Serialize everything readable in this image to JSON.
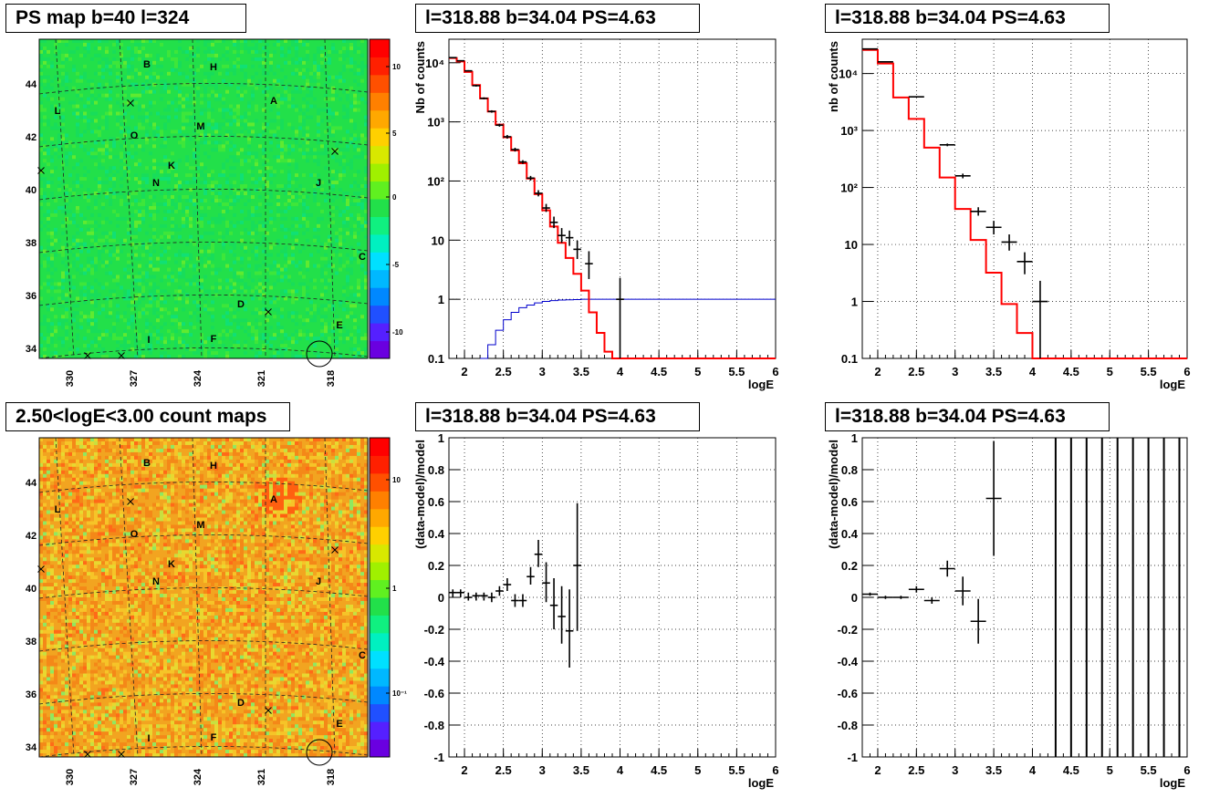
{
  "colors": {
    "ps_map_base": "#22e04a",
    "count_map_base": "#f2a420",
    "model_line": "#ff0000",
    "exposure_line": "#0000cc",
    "data": "#000000",
    "grid": "#000000"
  },
  "panels": {
    "ps_map_title": "PS map b=40 l=324",
    "count_map_title": "2.50<logE<3.00 count maps",
    "spec_left_title": "l=318.88 b=34.04 PS=4.63",
    "spec_right_title": "l=318.88 b=34.04 PS=4.63",
    "resid_left_title": "l=318.88 b=34.04 PS=4.63",
    "resid_right_title": "l=318.88 b=34.04 PS=4.63"
  },
  "maps": {
    "lat_ticks": [
      "44",
      "42",
      "40",
      "38",
      "36",
      "34"
    ],
    "lon_ticks": [
      "330",
      "327",
      "324",
      "321",
      "318"
    ],
    "ps_palette_ticks": [
      "10",
      "5",
      "0",
      "-5",
      "-10"
    ],
    "count_palette_ticks": [
      "10",
      "1",
      "10⁻¹"
    ],
    "source_labels": [
      "B",
      "H",
      "A",
      "L",
      "M",
      "O",
      "K",
      "N",
      "J",
      "C",
      "D",
      "E",
      "I",
      "F"
    ],
    "crosses": 6
  },
  "chart_data": [
    {
      "type": "histogram",
      "name": "spectrum-left",
      "xlabel": "logE",
      "ylabel": "Nb of counts",
      "xlim": [
        1.8,
        6
      ],
      "ylim": [
        0.1,
        25000
      ],
      "yscale": "log",
      "x_ticks": [
        "2",
        "2.5",
        "3",
        "3.5",
        "4",
        "4.5",
        "5",
        "5.5",
        "6"
      ],
      "y_ticks": [
        "0.1",
        "1",
        "10",
        "10²",
        "10³",
        "10⁴"
      ],
      "grid": true,
      "model_step": {
        "bin_width": 0.1,
        "x_start": 1.8,
        "values": [
          12000,
          10500,
          7000,
          4200,
          2500,
          1500,
          900,
          550,
          330,
          200,
          110,
          60,
          32,
          17,
          9,
          5,
          2.7,
          1.4,
          0.6,
          0.27,
          0.13,
          0.1,
          0.1,
          0.1,
          0.1,
          0.1,
          0.1,
          0.1,
          0.1,
          0.1,
          0.1,
          0.1,
          0.1,
          0.1,
          0.1,
          0.1,
          0.1,
          0.1,
          0.1,
          0.1,
          0.1,
          0.1
        ]
      },
      "exposure_step": {
        "bin_width": 0.1,
        "x_start": 2.2,
        "values": [
          0.1,
          0.17,
          0.3,
          0.45,
          0.6,
          0.72,
          0.8,
          0.87,
          0.92,
          0.95,
          0.97,
          0.98,
          0.99,
          1,
          1,
          1,
          1,
          1,
          1,
          1,
          1,
          1,
          1,
          1,
          1,
          1,
          1,
          1,
          1,
          1,
          1,
          1,
          1,
          1,
          1,
          1,
          1,
          1
        ]
      },
      "data_points": [
        {
          "x": 1.85,
          "y": 12200,
          "ylo": 12000,
          "yhi": 12400
        },
        {
          "x": 1.95,
          "y": 10800,
          "ylo": 10600,
          "yhi": 11000
        },
        {
          "x": 2.05,
          "y": 7300,
          "ylo": 7100,
          "yhi": 7500
        },
        {
          "x": 2.15,
          "y": 4100,
          "ylo": 3950,
          "yhi": 4250
        },
        {
          "x": 2.25,
          "y": 2500,
          "ylo": 2400,
          "yhi": 2600
        },
        {
          "x": 2.35,
          "y": 1500,
          "ylo": 1430,
          "yhi": 1570
        },
        {
          "x": 2.45,
          "y": 880,
          "ylo": 830,
          "yhi": 930
        },
        {
          "x": 2.55,
          "y": 560,
          "ylo": 520,
          "yhi": 600
        },
        {
          "x": 2.65,
          "y": 340,
          "ylo": 315,
          "yhi": 365
        },
        {
          "x": 2.75,
          "y": 210,
          "ylo": 195,
          "yhi": 225
        },
        {
          "x": 2.85,
          "y": 112,
          "ylo": 102,
          "yhi": 122
        },
        {
          "x": 2.95,
          "y": 62,
          "ylo": 55,
          "yhi": 70
        },
        {
          "x": 3.05,
          "y": 35,
          "ylo": 30,
          "yhi": 41
        },
        {
          "x": 3.15,
          "y": 20,
          "ylo": 16,
          "yhi": 25
        },
        {
          "x": 3.25,
          "y": 12,
          "ylo": 9,
          "yhi": 16
        },
        {
          "x": 3.35,
          "y": 11,
          "ylo": 8,
          "yhi": 14.5
        },
        {
          "x": 3.45,
          "y": 7,
          "ylo": 4.8,
          "yhi": 9.8
        },
        {
          "x": 3.6,
          "y": 4,
          "ylo": 2.2,
          "yhi": 6.5
        },
        {
          "x": 4.0,
          "y": 1,
          "ylo": 0.1,
          "yhi": 2.3
        }
      ]
    },
    {
      "type": "histogram",
      "name": "spectrum-right",
      "xlabel": "logE",
      "ylabel": "nb of counts",
      "xlim": [
        1.8,
        6
      ],
      "ylim": [
        0.1,
        40000
      ],
      "yscale": "log",
      "x_ticks": [
        "2",
        "2.5",
        "3",
        "3.5",
        "4",
        "4.5",
        "5",
        "5.5",
        "6"
      ],
      "y_ticks": [
        "0.1",
        "1",
        "10",
        "10²",
        "10³",
        "10⁴"
      ],
      "grid": true,
      "model_step": {
        "bin_width": 0.2,
        "x_start": 1.8,
        "values": [
          26000,
          15000,
          3800,
          1600,
          500,
          150,
          42,
          12,
          3.2,
          0.9,
          0.28,
          0.1,
          0.1,
          0.1,
          0.1,
          0.1,
          0.1,
          0.1,
          0.1,
          0.1,
          0.1
        ]
      },
      "data_points": [
        {
          "x": 1.9,
          "y": 27000,
          "ylo": 26700,
          "yhi": 27300
        },
        {
          "x": 2.1,
          "y": 16000,
          "ylo": 15800,
          "yhi": 16200
        },
        {
          "x": 2.5,
          "y": 3900,
          "ylo": 3800,
          "yhi": 4000
        },
        {
          "x": 2.9,
          "y": 560,
          "ylo": 530,
          "yhi": 590
        },
        {
          "x": 3.1,
          "y": 160,
          "ylo": 145,
          "yhi": 175
        },
        {
          "x": 3.3,
          "y": 38,
          "ylo": 32,
          "yhi": 45
        },
        {
          "x": 3.5,
          "y": 20,
          "ylo": 15,
          "yhi": 26
        },
        {
          "x": 3.7,
          "y": 11,
          "ylo": 7.8,
          "yhi": 15
        },
        {
          "x": 3.9,
          "y": 5,
          "ylo": 3,
          "yhi": 7.3
        },
        {
          "x": 4.1,
          "y": 1,
          "ylo": 0.1,
          "yhi": 2.3
        }
      ]
    },
    {
      "type": "scatter",
      "name": "residual-left",
      "xlabel": "logE",
      "ylabel": "(data-model)/model",
      "xlim": [
        1.8,
        6
      ],
      "ylim": [
        -1,
        1
      ],
      "x_ticks": [
        "2",
        "2.5",
        "3",
        "3.5",
        "4",
        "4.5",
        "5",
        "5.5",
        "6"
      ],
      "y_ticks": [
        "1",
        "0.8",
        "0.6",
        "0.4",
        "0.2",
        "0",
        "-0.2",
        "-0.4",
        "-0.6",
        "-0.8",
        "-1"
      ],
      "grid": true,
      "data_points": [
        {
          "x": 1.85,
          "y": 0.03,
          "ylo": 0.0,
          "yhi": 0.05
        },
        {
          "x": 1.95,
          "y": 0.03,
          "ylo": 0.0,
          "yhi": 0.05
        },
        {
          "x": 2.05,
          "y": 0.0,
          "ylo": -0.02,
          "yhi": 0.03
        },
        {
          "x": 2.15,
          "y": 0.01,
          "ylo": -0.02,
          "yhi": 0.03
        },
        {
          "x": 2.25,
          "y": 0.01,
          "ylo": -0.02,
          "yhi": 0.03
        },
        {
          "x": 2.35,
          "y": 0.0,
          "ylo": -0.03,
          "yhi": 0.03
        },
        {
          "x": 2.45,
          "y": 0.04,
          "ylo": 0.01,
          "yhi": 0.07
        },
        {
          "x": 2.55,
          "y": 0.08,
          "ylo": 0.04,
          "yhi": 0.12
        },
        {
          "x": 2.65,
          "y": -0.02,
          "ylo": -0.06,
          "yhi": 0.02
        },
        {
          "x": 2.75,
          "y": -0.02,
          "ylo": -0.06,
          "yhi": 0.02
        },
        {
          "x": 2.85,
          "y": 0.13,
          "ylo": 0.08,
          "yhi": 0.19
        },
        {
          "x": 2.95,
          "y": 0.27,
          "ylo": 0.19,
          "yhi": 0.36
        },
        {
          "x": 3.05,
          "y": 0.09,
          "ylo": -0.03,
          "yhi": 0.22
        },
        {
          "x": 3.15,
          "y": -0.05,
          "ylo": -0.2,
          "yhi": 0.12
        },
        {
          "x": 3.25,
          "y": -0.12,
          "ylo": -0.29,
          "yhi": 0.07
        },
        {
          "x": 3.35,
          "y": -0.21,
          "ylo": -0.44,
          "yhi": 0.05
        },
        {
          "x": 3.45,
          "y": 0.2,
          "ylo": -0.21,
          "yhi": 0.59
        }
      ]
    },
    {
      "type": "scatter",
      "name": "residual-right",
      "xlabel": "logE",
      "ylabel": "(data-model)/model",
      "xlim": [
        1.8,
        6
      ],
      "ylim": [
        -1,
        1
      ],
      "x_ticks": [
        "2",
        "2.5",
        "3",
        "3.5",
        "4",
        "4.5",
        "5",
        "5.5",
        "6"
      ],
      "y_ticks": [
        "1",
        "0.8",
        "0.6",
        "0.4",
        "0.2",
        "0",
        "-0.2",
        "-0.4",
        "-0.6",
        "-0.8",
        "-1"
      ],
      "grid": true,
      "data_points": [
        {
          "x": 1.9,
          "y": 0.02,
          "ylo": 0.01,
          "yhi": 0.03
        },
        {
          "x": 2.1,
          "y": 0.0,
          "ylo": -0.01,
          "yhi": 0.01
        },
        {
          "x": 2.3,
          "y": 0.0,
          "ylo": -0.01,
          "yhi": 0.01
        },
        {
          "x": 2.5,
          "y": 0.05,
          "ylo": 0.03,
          "yhi": 0.07
        },
        {
          "x": 2.7,
          "y": -0.02,
          "ylo": -0.04,
          "yhi": 0.0
        },
        {
          "x": 2.9,
          "y": 0.18,
          "ylo": 0.13,
          "yhi": 0.23
        },
        {
          "x": 3.1,
          "y": 0.04,
          "ylo": -0.05,
          "yhi": 0.13
        },
        {
          "x": 3.3,
          "y": -0.15,
          "ylo": -0.29,
          "yhi": -0.01
        },
        {
          "x": 3.5,
          "y": 0.62,
          "ylo": 0.26,
          "yhi": 0.98
        }
      ],
      "full_bars_x": [
        4.3,
        4.5,
        4.7,
        4.9,
        5.1,
        5.3,
        5.5,
        5.7,
        5.9
      ]
    }
  ]
}
